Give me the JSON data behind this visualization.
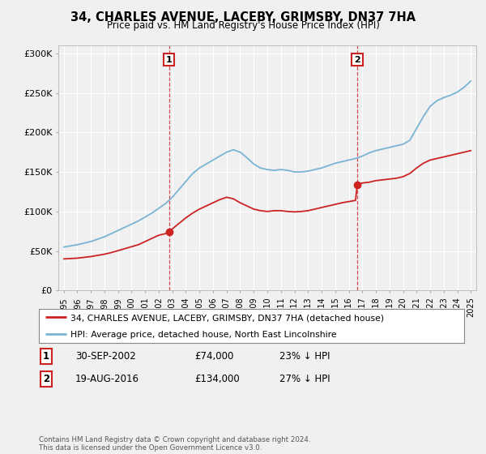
{
  "title": "34, CHARLES AVENUE, LACEBY, GRIMSBY, DN37 7HA",
  "subtitle": "Price paid vs. HM Land Registry's House Price Index (HPI)",
  "legend_line1": "34, CHARLES AVENUE, LACEBY, GRIMSBY, DN37 7HA (detached house)",
  "legend_line2": "HPI: Average price, detached house, North East Lincolnshire",
  "footer": "Contains HM Land Registry data © Crown copyright and database right 2024.\nThis data is licensed under the Open Government Licence v3.0.",
  "sale1_label": "1",
  "sale1_date": "30-SEP-2002",
  "sale1_price": "£74,000",
  "sale1_hpi": "23% ↓ HPI",
  "sale2_label": "2",
  "sale2_date": "19-AUG-2016",
  "sale2_price": "£134,000",
  "sale2_hpi": "27% ↓ HPI",
  "sale1_x": 2002.75,
  "sale1_y": 74000,
  "sale2_x": 2016.63,
  "sale2_y": 134000,
  "hpi_color": "#7ab3d4",
  "price_color": "#cc2222",
  "ylim": [
    0,
    310000
  ],
  "yticks": [
    0,
    50000,
    100000,
    150000,
    200000,
    250000,
    300000
  ],
  "ytick_labels": [
    "£0",
    "£50K",
    "£100K",
    "£150K",
    "£200K",
    "£250K",
    "£300K"
  ],
  "xlim_left": 1994.6,
  "xlim_right": 2025.4,
  "plot_bg": "#f0f0f0",
  "fig_bg": "#f0f0f0",
  "grid_color": "#ffffff",
  "hpi_years": [
    1995,
    1995.5,
    1996,
    1996.5,
    1997,
    1997.5,
    1998,
    1998.5,
    1999,
    1999.5,
    2000,
    2000.5,
    2001,
    2001.5,
    2002,
    2002.5,
    2003,
    2003.5,
    2004,
    2004.5,
    2005,
    2005.5,
    2006,
    2006.5,
    2007,
    2007.5,
    2008,
    2008.5,
    2009,
    2009.5,
    2010,
    2010.5,
    2011,
    2011.5,
    2012,
    2012.5,
    2013,
    2013.5,
    2014,
    2014.5,
    2015,
    2015.5,
    2016,
    2016.5,
    2017,
    2017.5,
    2018,
    2018.5,
    2019,
    2019.5,
    2020,
    2020.5,
    2021,
    2021.5,
    2022,
    2022.5,
    2023,
    2023.5,
    2024,
    2024.5,
    2025
  ],
  "hpi_vals": [
    55000,
    56500,
    58000,
    60000,
    62000,
    65000,
    68000,
    72000,
    76000,
    80000,
    84000,
    88000,
    93000,
    98000,
    104000,
    110000,
    118000,
    128000,
    138000,
    148000,
    155000,
    160000,
    165000,
    170000,
    175000,
    178000,
    175000,
    168000,
    160000,
    155000,
    153000,
    152000,
    153000,
    152000,
    150000,
    150000,
    151000,
    153000,
    155000,
    158000,
    161000,
    163000,
    165000,
    167000,
    170000,
    174000,
    177000,
    179000,
    181000,
    183000,
    185000,
    190000,
    205000,
    220000,
    233000,
    240000,
    244000,
    247000,
    251000,
    257000,
    265000
  ],
  "price_years": [
    1995,
    1995.5,
    1996,
    1996.5,
    1997,
    1997.5,
    1998,
    1998.5,
    1999,
    1999.5,
    2000,
    2000.5,
    2001,
    2001.5,
    2002,
    2002.5,
    2002.75,
    2003,
    2003.5,
    2004,
    2004.5,
    2005,
    2005.5,
    2006,
    2006.5,
    2007,
    2007.5,
    2008,
    2008.5,
    2009,
    2009.5,
    2010,
    2010.5,
    2011,
    2011.5,
    2012,
    2012.5,
    2013,
    2013.5,
    2014,
    2014.5,
    2015,
    2015.5,
    2016,
    2016.5,
    2016.63,
    2017,
    2017.5,
    2018,
    2018.5,
    2019,
    2019.5,
    2020,
    2020.5,
    2021,
    2021.5,
    2022,
    2022.5,
    2023,
    2023.5,
    2024,
    2024.5,
    2025
  ],
  "price_vals": [
    40000,
    40500,
    41000,
    42000,
    43000,
    44500,
    46000,
    48000,
    50500,
    53000,
    55500,
    58000,
    62000,
    66000,
    70000,
    72000,
    74000,
    78000,
    85000,
    92000,
    98000,
    103000,
    107000,
    111000,
    115000,
    118000,
    116000,
    111000,
    107000,
    103000,
    101000,
    100000,
    101000,
    101000,
    100000,
    99500,
    100000,
    101000,
    103000,
    105000,
    107000,
    109000,
    111000,
    112500,
    114000,
    134000,
    136000,
    137000,
    139000,
    140000,
    141000,
    142000,
    144000,
    148000,
    155000,
    161000,
    165000,
    167000,
    169000,
    171000,
    173000,
    175000,
    177000
  ]
}
